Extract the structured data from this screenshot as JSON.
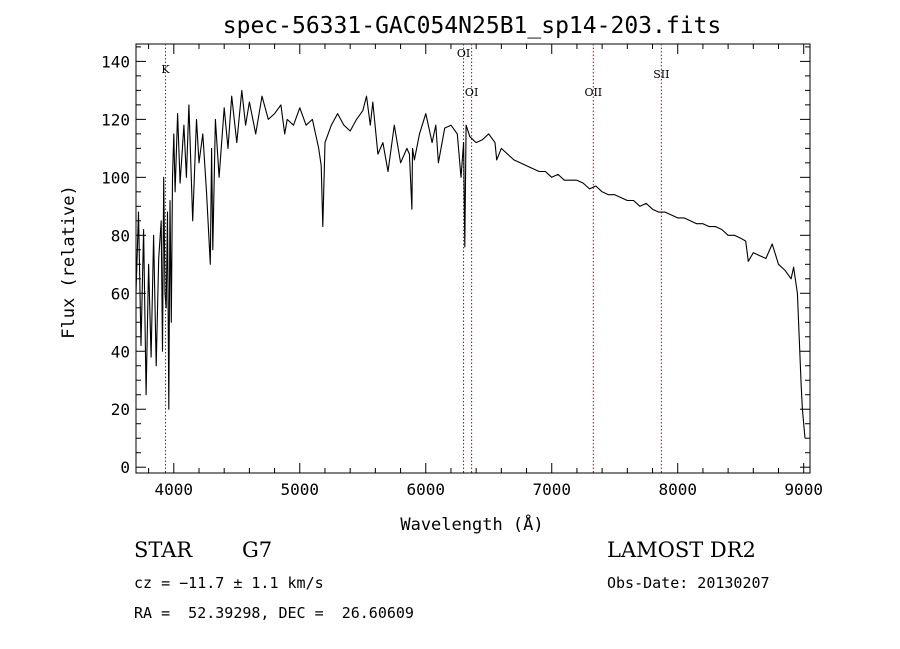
{
  "chart_data": {
    "type": "line",
    "title": "spec-56331-GAC054N25B1_sp14-203.fits",
    "xlabel": "Wavelength (Å)",
    "ylabel": "Flux (relative)",
    "xlim": [
      3700,
      9050
    ],
    "ylim": [
      -2,
      146
    ],
    "x_ticks": [
      4000,
      5000,
      6000,
      7000,
      8000,
      9000
    ],
    "y_ticks": [
      0,
      20,
      40,
      60,
      80,
      100,
      120,
      140
    ],
    "grid": false,
    "series": [
      {
        "x": [
          3700,
          3720,
          3740,
          3760,
          3780,
          3800,
          3820,
          3840,
          3860,
          3880,
          3900,
          3910,
          3920,
          3930,
          3940,
          3950,
          3960,
          3970,
          3980,
          3990,
          4000,
          4010,
          4030,
          4050,
          4080,
          4100,
          4120,
          4150,
          4180,
          4200,
          4230,
          4260,
          4290,
          4300,
          4310,
          4330,
          4360,
          4400,
          4430,
          4460,
          4500,
          4540,
          4570,
          4600,
          4650,
          4700,
          4750,
          4800,
          4850,
          4880,
          4900,
          4950,
          5000,
          5050,
          5100,
          5150,
          5170,
          5183,
          5200,
          5250,
          5300,
          5350,
          5400,
          5450,
          5500,
          5530,
          5560,
          5580,
          5620,
          5660,
          5700,
          5750,
          5800,
          5850,
          5870,
          5890,
          5895,
          5910,
          5950,
          6000,
          6050,
          6080,
          6100,
          6150,
          6200,
          6250,
          6280,
          6300,
          6310,
          6320,
          6350,
          6400,
          6450,
          6500,
          6550,
          6563,
          6600,
          6650,
          6700,
          6750,
          6800,
          6850,
          6900,
          6950,
          7000,
          7050,
          7100,
          7150,
          7200,
          7250,
          7300,
          7350,
          7400,
          7450,
          7500,
          7550,
          7600,
          7650,
          7700,
          7750,
          7800,
          7850,
          7900,
          7950,
          8000,
          8050,
          8100,
          8150,
          8200,
          8250,
          8300,
          8350,
          8400,
          8450,
          8500,
          8540,
          8560,
          8600,
          8650,
          8700,
          8750,
          8800,
          8850,
          8900,
          8920,
          8950,
          8980,
          8990,
          9000,
          9010
        ],
        "y": [
          60,
          88,
          42,
          82,
          25,
          70,
          38,
          80,
          35,
          72,
          85,
          40,
          100,
          60,
          55,
          88,
          20,
          92,
          50,
          100,
          115,
          95,
          122,
          98,
          118,
          100,
          125,
          85,
          120,
          105,
          115,
          95,
          70,
          110,
          75,
          120,
          100,
          124,
          110,
          128,
          112,
          130,
          118,
          126,
          115,
          128,
          120,
          122,
          125,
          115,
          120,
          118,
          124,
          118,
          120,
          110,
          104,
          83,
          112,
          118,
          122,
          118,
          116,
          120,
          123,
          128,
          118,
          126,
          108,
          112,
          102,
          118,
          105,
          110,
          108,
          89,
          110,
          106,
          115,
          122,
          112,
          118,
          105,
          117,
          118,
          115,
          100,
          112,
          76,
          118,
          114,
          112,
          113,
          115,
          112,
          106,
          110,
          108,
          106,
          105,
          104,
          103,
          102,
          102,
          100,
          101,
          99,
          99,
          99,
          98,
          96,
          97,
          95,
          94,
          94,
          93,
          92,
          92,
          90,
          91,
          89,
          88,
          88,
          87,
          86,
          86,
          85,
          84,
          84,
          83,
          83,
          82,
          80,
          80,
          79,
          78,
          71,
          74,
          73,
          72,
          77,
          70,
          68,
          65,
          69,
          60,
          28,
          20,
          15,
          10
        ]
      }
    ],
    "annotations": [
      {
        "label": "K",
        "x": 3934
      },
      {
        "label": "OI",
        "x": 6300
      },
      {
        "label": "OI",
        "x": 6364
      },
      {
        "label": "OII",
        "x": 7330
      },
      {
        "label": "SII",
        "x": 7870
      }
    ]
  },
  "footer": {
    "object_class": "STAR",
    "subclass": "G7",
    "redshift": "cz = −11.7 ± 1.1 km/s",
    "coords": "RA =  52.39298, DEC =  26.60609",
    "survey": "LAMOST DR2",
    "obs_date": "Obs-Date: 20130207"
  }
}
